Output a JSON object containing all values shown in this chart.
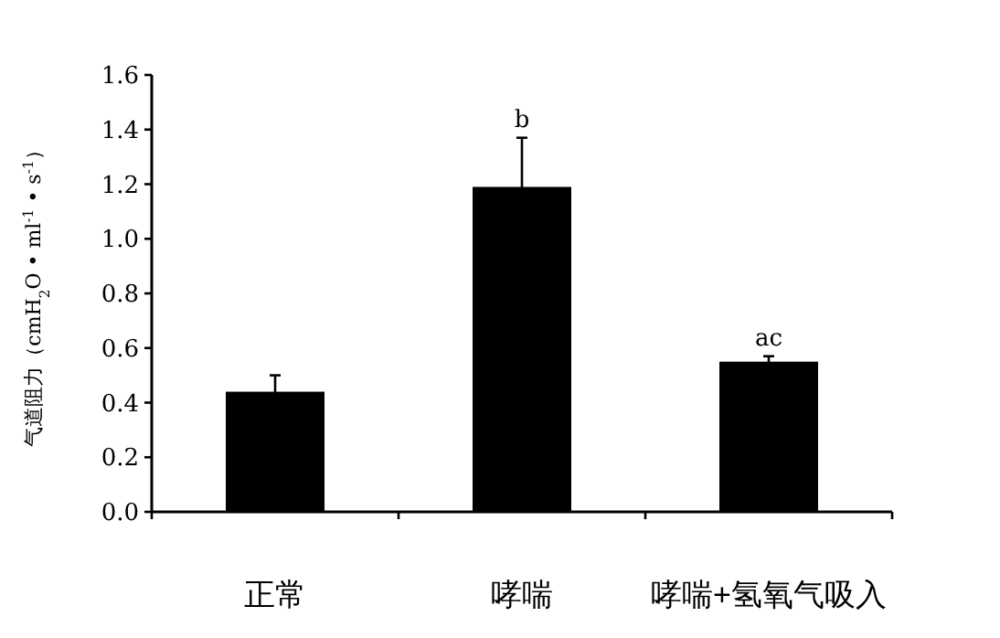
{
  "chart_data": {
    "type": "bar",
    "ylabel": "气道阻力（cmH$_{2}$O • ml$^{-1}$ • s$^{-1}$）",
    "categories": [
      "正常",
      "哮喘",
      "哮喘+氢氧气吸入"
    ],
    "values": [
      0.44,
      1.19,
      0.55
    ],
    "errors": [
      0.06,
      0.18,
      0.02
    ],
    "color": "#000000",
    "ylim": [
      0,
      1.6
    ],
    "yticks": [
      {
        "value": 0,
        "label": "0.0"
      },
      {
        "value": 0.2,
        "label": "0.2"
      },
      {
        "value": 0.4,
        "label": "0.4"
      },
      {
        "value": 0.6,
        "label": "0.6"
      },
      {
        "value": 0.8,
        "label": "0.8"
      },
      {
        "value": 1.0,
        "label": "1.0"
      },
      {
        "value": 1.2,
        "label": "1.2"
      },
      {
        "value": 1.4,
        "label": "1.4"
      },
      {
        "value": 1.6,
        "label": "1.6"
      }
    ],
    "annotations": [
      {
        "text": "b",
        "x": "哮喘",
        "y": 1.37
      },
      {
        "text": "ac",
        "x": "哮喘+氢氧气吸入",
        "y": 0.57
      }
    ]
  }
}
